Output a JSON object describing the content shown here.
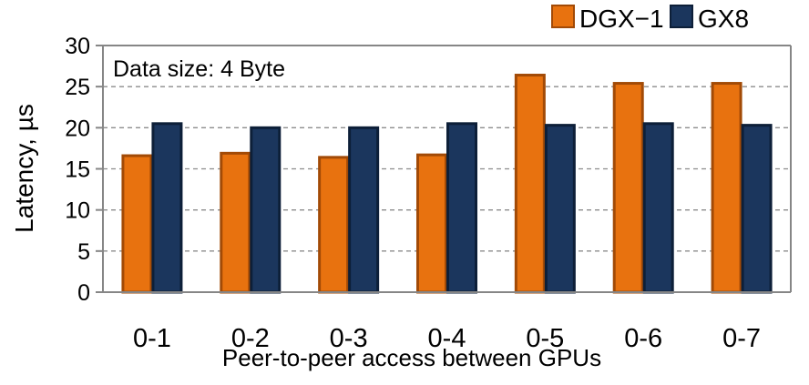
{
  "chart_data": {
    "type": "bar",
    "annotation": "Data size: 4 Byte",
    "xlabel": "Peer-to-peer access between GPUs",
    "ylabel": "Latency, µs",
    "categories": [
      "0-1",
      "0-2",
      "0-3",
      "0-4",
      "0-5",
      "0-6",
      "0-7"
    ],
    "ylim": [
      0,
      30
    ],
    "yticks": [
      0,
      5,
      10,
      15,
      20,
      25,
      30
    ],
    "grid": true,
    "legend_position": "top-right",
    "series": [
      {
        "name": "DGX−1",
        "color": "#E8720F",
        "edge_color": "#A24A06",
        "values": [
          16.6,
          16.9,
          16.4,
          16.7,
          26.4,
          25.4,
          25.4
        ]
      },
      {
        "name": "GX8",
        "color": "#1B365D",
        "edge_color": "#0D1F38",
        "values": [
          20.5,
          20.0,
          20.0,
          20.5,
          20.3,
          20.5,
          20.3
        ]
      }
    ]
  }
}
